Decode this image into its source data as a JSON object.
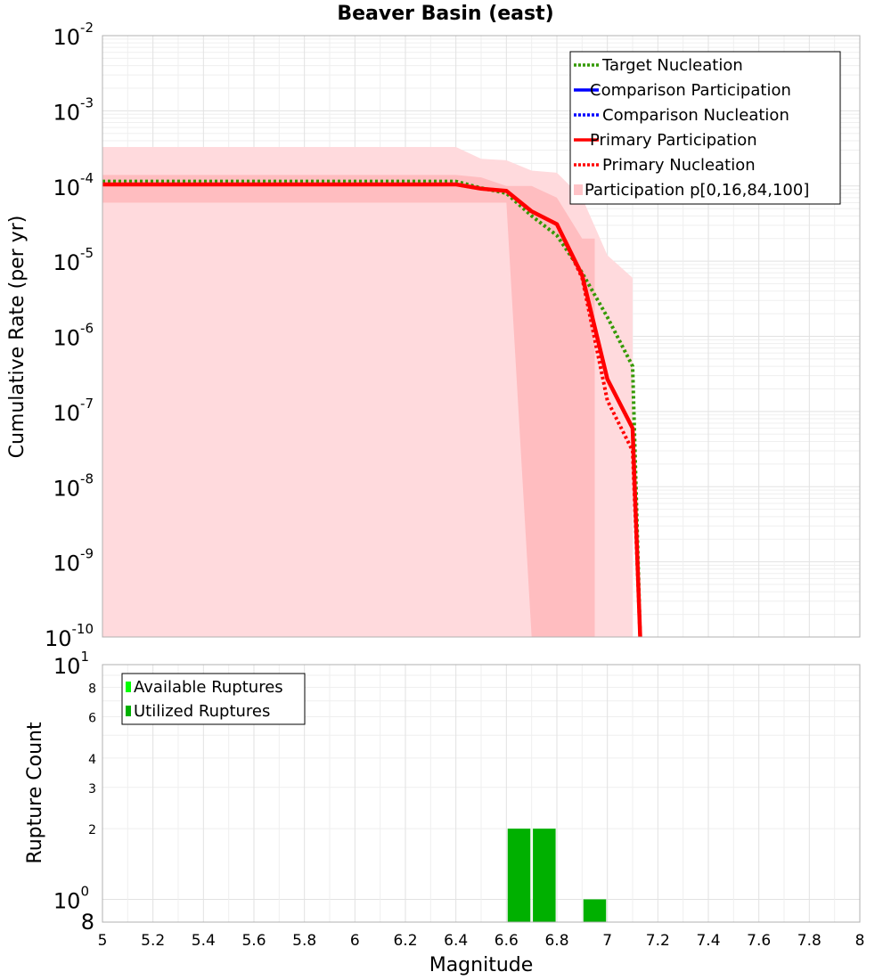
{
  "chart_data": [
    {
      "type": "line",
      "title": "Beaver Basin (east)",
      "xlabel": "",
      "ylabel": "Cumulative Rate (per yr)",
      "xlim": [
        5,
        8
      ],
      "ylim": [
        1e-10,
        0.01
      ],
      "yscale": "log",
      "grid": true,
      "legend_position": "top-right",
      "y_ticks": [
        {
          "base": "10",
          "exp": "-2"
        },
        {
          "base": "10",
          "exp": "-3"
        },
        {
          "base": "10",
          "exp": "-4"
        },
        {
          "base": "10",
          "exp": "-5"
        },
        {
          "base": "10",
          "exp": "-6"
        },
        {
          "base": "10",
          "exp": "-7"
        },
        {
          "base": "10",
          "exp": "-8"
        },
        {
          "base": "10",
          "exp": "-9"
        },
        {
          "base": "10",
          "exp": "-10"
        }
      ],
      "series": [
        {
          "name": "Target Nucleation",
          "color": "#339900",
          "style": "dotted",
          "x": [
            5.0,
            5.1,
            5.2,
            5.3,
            5.4,
            5.5,
            5.6,
            5.7,
            5.8,
            5.9,
            6.0,
            6.1,
            6.2,
            6.3,
            6.4,
            6.5,
            6.6,
            6.7,
            6.8,
            6.9,
            7.0,
            7.1,
            7.13
          ],
          "y": [
            0.000115,
            0.000115,
            0.000115,
            0.000115,
            0.000115,
            0.000115,
            0.000115,
            0.000115,
            0.000115,
            0.000115,
            0.000115,
            0.000115,
            0.000115,
            0.000115,
            0.000115,
            9.4e-05,
            8e-05,
            4e-05,
            2.2e-05,
            7e-06,
            1.8e-06,
            4e-07,
            1e-10
          ]
        },
        {
          "name": "Comparison Participation",
          "color": "#0000ff",
          "style": "solid",
          "x": [],
          "y": []
        },
        {
          "name": "Comparison Nucleation",
          "color": "#0000ff",
          "style": "dotted",
          "x": [],
          "y": []
        },
        {
          "name": "Primary Participation",
          "color": "#ff0000",
          "style": "solid",
          "x": [
            5.0,
            5.1,
            5.2,
            5.3,
            5.4,
            5.5,
            5.6,
            5.7,
            5.8,
            5.9,
            6.0,
            6.1,
            6.2,
            6.3,
            6.4,
            6.5,
            6.6,
            6.7,
            6.8,
            6.9,
            7.0,
            7.1,
            7.13
          ],
          "y": [
            0.000105,
            0.000105,
            0.000105,
            0.000105,
            0.000105,
            0.000105,
            0.000105,
            0.000105,
            0.000105,
            0.000105,
            0.000105,
            0.000105,
            0.000105,
            0.000105,
            0.000105,
            9.2e-05,
            8.6e-05,
            4.6e-05,
            3.1e-05,
            6.5e-06,
            2.7e-07,
            6e-08,
            1e-10
          ]
        },
        {
          "name": "Primary Nucleation",
          "color": "#ff0000",
          "style": "dotted",
          "x": [
            5.0,
            5.1,
            5.2,
            5.3,
            5.4,
            5.5,
            5.6,
            5.7,
            5.8,
            5.9,
            6.0,
            6.1,
            6.2,
            6.3,
            6.4,
            6.5,
            6.6,
            6.7,
            6.8,
            6.9,
            7.0,
            7.1,
            7.13
          ],
          "y": [
            0.000105,
            0.000105,
            0.000105,
            0.000105,
            0.000105,
            0.000105,
            0.000105,
            0.000105,
            0.000105,
            0.000105,
            0.000105,
            0.000105,
            0.000105,
            0.000105,
            0.000105,
            9.2e-05,
            8.6e-05,
            4.6e-05,
            3.1e-05,
            6e-06,
            1.4e-07,
            3e-08,
            1e-10
          ]
        }
      ],
      "bands": [
        {
          "name": "Participation p[0,16,84,100]",
          "color": "#ffdadd",
          "x": [
            5.0,
            6.4,
            6.5,
            6.6,
            6.7,
            6.8,
            6.9,
            7.0,
            7.1
          ],
          "lower": [
            1e-10,
            1e-10,
            1e-10,
            1e-10,
            1e-10,
            1e-10,
            1e-10,
            1e-10,
            1e-10
          ],
          "upper": [
            0.00033,
            0.00033,
            0.00023,
            0.00022,
            0.00016,
            0.00015,
            7e-05,
            1.2e-05,
            6e-06
          ]
        },
        {
          "name": "",
          "color": "#ffbdc0",
          "x": [
            5.0,
            6.4,
            6.5,
            6.6,
            6.7,
            6.8,
            6.9,
            6.95
          ],
          "lower": [
            6e-05,
            6e-05,
            6e-05,
            6e-05,
            1e-10,
            1e-10,
            1e-10,
            1e-10
          ],
          "upper": [
            0.00014,
            0.00014,
            0.00013,
            0.0001,
            0.0001,
            7e-05,
            2e-05,
            2e-05
          ]
        }
      ],
      "legend": [
        {
          "label": "Target Nucleation",
          "color": "#339900",
          "style": "dotted"
        },
        {
          "label": "Comparison Participation",
          "color": "#0000ff",
          "style": "solid"
        },
        {
          "label": "Comparison Nucleation",
          "color": "#0000ff",
          "style": "dotted"
        },
        {
          "label": "Primary Participation",
          "color": "#ff0000",
          "style": "solid"
        },
        {
          "label": "Primary Nucleation",
          "color": "#ff0000",
          "style": "dotted"
        },
        {
          "label": "Participation p[0,16,84,100]",
          "color": "#ffc4c8",
          "style": "box"
        }
      ]
    },
    {
      "type": "bar",
      "title": "",
      "xlabel": "Magnitude",
      "ylabel": "Rupture Count",
      "xlim": [
        5,
        8
      ],
      "ylim": [
        0.8,
        10
      ],
      "yscale": "log",
      "grid": true,
      "legend_position": "top-left",
      "x_tick_labels": [
        "5",
        "5.2",
        "5.4",
        "5.6",
        "5.8",
        "6",
        "6.2",
        "6.4",
        "6.6",
        "6.8",
        "7",
        "7.2",
        "7.4",
        "7.6",
        "7.8",
        "8"
      ],
      "y_minor_ticks": [
        {
          "value": 8,
          "label": "8"
        },
        {
          "value": 6,
          "label": "6"
        },
        {
          "value": 4,
          "label": "4"
        },
        {
          "value": 3,
          "label": "3"
        },
        {
          "value": 2,
          "label": "2"
        }
      ],
      "y_major_ticks": [
        {
          "value": 10,
          "base": "10",
          "exp": "1"
        },
        {
          "value": 1,
          "base": "10",
          "exp": "0"
        }
      ],
      "y_bottom_label": "8",
      "series": [
        {
          "name": "Available Ruptures",
          "color": "#00ff00",
          "x": [
            6.65,
            6.75,
            6.95
          ],
          "values": [
            2,
            2,
            1
          ]
        },
        {
          "name": "Utilized Ruptures",
          "color": "#00b000",
          "x": [
            6.65,
            6.75,
            6.95
          ],
          "values": [
            2,
            2,
            1
          ]
        }
      ],
      "bar_width": 0.09,
      "legend": [
        {
          "label": "Available Ruptures",
          "color": "#00ff00"
        },
        {
          "label": "Utilized Ruptures",
          "color": "#00b000"
        }
      ]
    }
  ]
}
